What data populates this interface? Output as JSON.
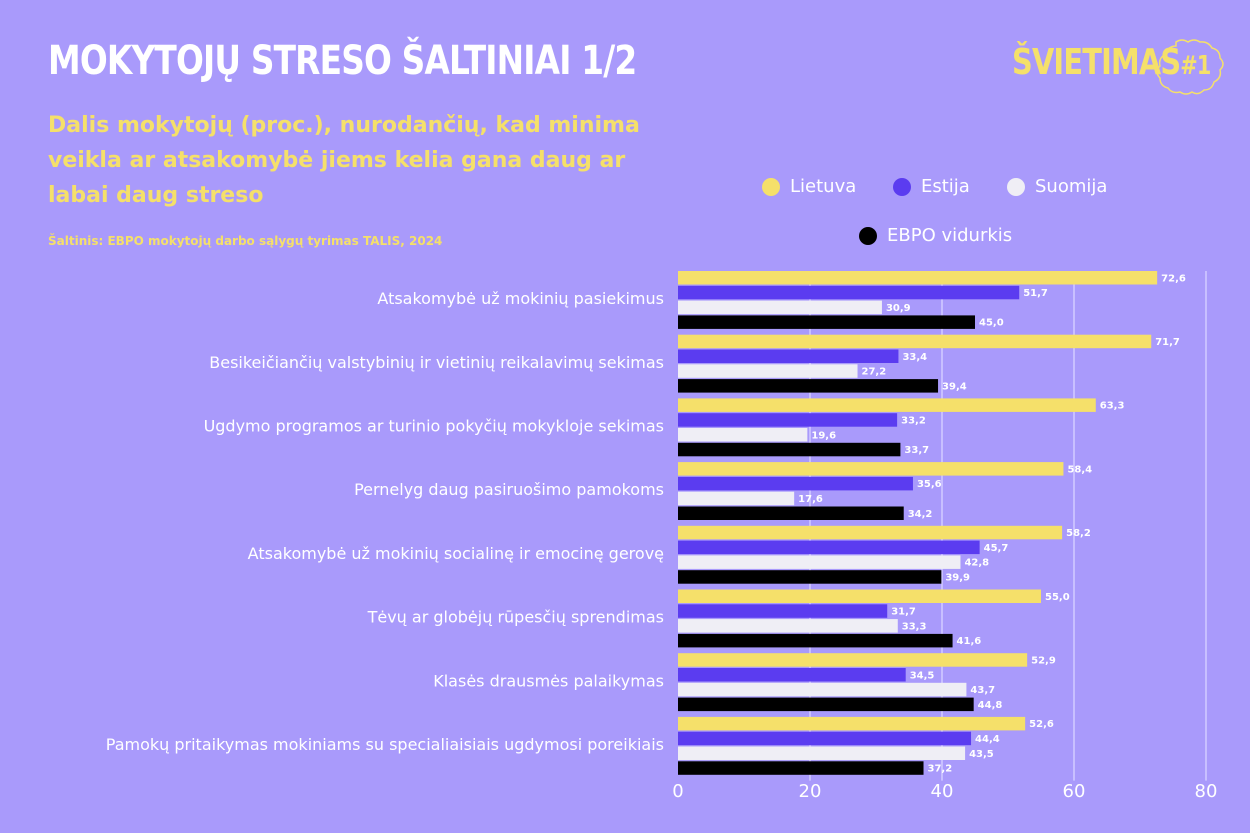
{
  "header": {
    "title": "MOKYTOJŲ STRESO ŠALTINIAI 1/2",
    "subtitle": "Dalis mokytojų (proc.), nurodančių, kad minima veikla ar atsakomybė jiems kelia gana daug ar labai daug streso",
    "source": "Šaltinis: EBPO mokytojų darbo sąlygų tyrimas TALIS, 2024"
  },
  "logo": {
    "text": "ŠVIETIMAS",
    "suffix": "#1"
  },
  "colors": {
    "background": "#a99afb",
    "accent": "#f5e06a",
    "lietuva": "#f5e06a",
    "estija": "#5b3cf0",
    "suomija": "#efeef5",
    "ebpo": "#000000"
  },
  "legend": [
    {
      "label": "Lietuva",
      "color": "#f5e06a"
    },
    {
      "label": "Estija",
      "color": "#5b3cf0"
    },
    {
      "label": "Suomija",
      "color": "#efeef5"
    },
    {
      "label": "EBPO vidurkis",
      "color": "#000000"
    }
  ],
  "chart_data": {
    "type": "bar",
    "orientation": "horizontal",
    "categories": [
      "Atsakomybė už mokinių pasiekimus",
      "Besikeičiančių valstybinių ir vietinių reikalavimų sekimas",
      "Ugdymo programos ar turinio pokyčių mokykloje sekimas",
      "Pernelyg daug pasiruošimo pamokoms",
      "Atsakomybė už mokinių socialinę ir emocinę gerovę",
      "Tėvų ar globėjų rūpesčių sprendimas",
      "Klasės drausmės palaikymas",
      "Pamokų pritaikymas mokiniams su specialiaisiais ugdymosi poreikiais"
    ],
    "series": [
      {
        "name": "Lietuva",
        "values": [
          72.6,
          71.7,
          63.3,
          58.4,
          58.2,
          55.0,
          52.9,
          52.6
        ],
        "labels": [
          "72,6",
          "71,7",
          "63,3",
          "58,4",
          "58,2",
          "55,0",
          "52,9",
          "52,6"
        ]
      },
      {
        "name": "Estija",
        "values": [
          51.7,
          33.4,
          33.2,
          35.6,
          45.7,
          31.7,
          34.5,
          44.4
        ],
        "labels": [
          "51,7",
          "33,4",
          "33,2",
          "35,6",
          "45,7",
          "31,7",
          "34,5",
          "44,4"
        ]
      },
      {
        "name": "Suomija",
        "values": [
          30.9,
          27.2,
          19.6,
          17.6,
          42.8,
          33.3,
          43.7,
          43.5
        ],
        "labels": [
          "30,9",
          "27,2",
          "19,6",
          "17,6",
          "42,8",
          "33,3",
          "43,7",
          "43,5"
        ]
      },
      {
        "name": "EBPO vidurkis",
        "values": [
          45.0,
          39.4,
          33.7,
          34.2,
          39.9,
          41.6,
          44.8,
          37.2
        ],
        "labels": [
          "45,0",
          "39,4",
          "33,7",
          "34,2",
          "39,9",
          "41,6",
          "44,8",
          "37,2"
        ]
      }
    ],
    "xlim": [
      0,
      80
    ],
    "xticks": [
      "0",
      "20",
      "40",
      "60",
      "80"
    ],
    "grid": true,
    "legend_position": "top-right"
  }
}
